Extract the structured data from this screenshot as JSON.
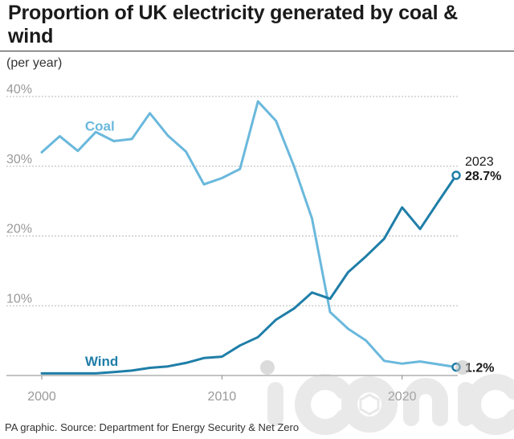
{
  "title": "Proportion of UK electricity generated by coal & wind",
  "subtitle": "(per year)",
  "source": "PA graphic. Source: Department for Energy Security & Net Zero",
  "watermark": "iconic",
  "colors": {
    "coal": "#6ab8dc",
    "wind": "#1f7ea8",
    "grid": "#b8b8b8",
    "text": "#1a1a1a",
    "axis": "#888888"
  },
  "chart_data": {
    "type": "line",
    "x": [
      2000,
      2001,
      2002,
      2003,
      2004,
      2005,
      2006,
      2007,
      2008,
      2009,
      2010,
      2011,
      2012,
      2013,
      2014,
      2015,
      2016,
      2017,
      2018,
      2019,
      2020,
      2021,
      2022,
      2023
    ],
    "series": [
      {
        "name": "Coal",
        "values": [
          32.0,
          34.3,
          32.2,
          34.9,
          33.6,
          33.9,
          37.6,
          34.4,
          32.1,
          27.4,
          28.3,
          29.6,
          39.3,
          36.5,
          30.0,
          22.5,
          9.1,
          6.7,
          5.0,
          2.1,
          1.7,
          2.0,
          1.6,
          1.2
        ]
      },
      {
        "name": "Wind",
        "values": [
          0.3,
          0.3,
          0.3,
          0.3,
          0.5,
          0.7,
          1.1,
          1.3,
          1.8,
          2.5,
          2.7,
          4.3,
          5.5,
          8.0,
          9.6,
          11.9,
          11.0,
          14.8,
          17.1,
          19.6,
          24.1,
          21.0,
          24.9,
          28.7
        ]
      }
    ],
    "xlim": [
      2000,
      2023
    ],
    "ylim": [
      0,
      40
    ],
    "yticks": [
      10,
      20,
      30,
      40
    ],
    "ytick_labels": [
      "10%",
      "20%",
      "30%",
      "40%"
    ],
    "xticks": [
      2000,
      2010,
      2020
    ],
    "xtick_labels": [
      "2000",
      "2010",
      "2020"
    ],
    "grid": true,
    "annotations": {
      "end_year": "2023",
      "wind_end_label": "28.7%",
      "coal_end_label": "1.2%"
    }
  }
}
